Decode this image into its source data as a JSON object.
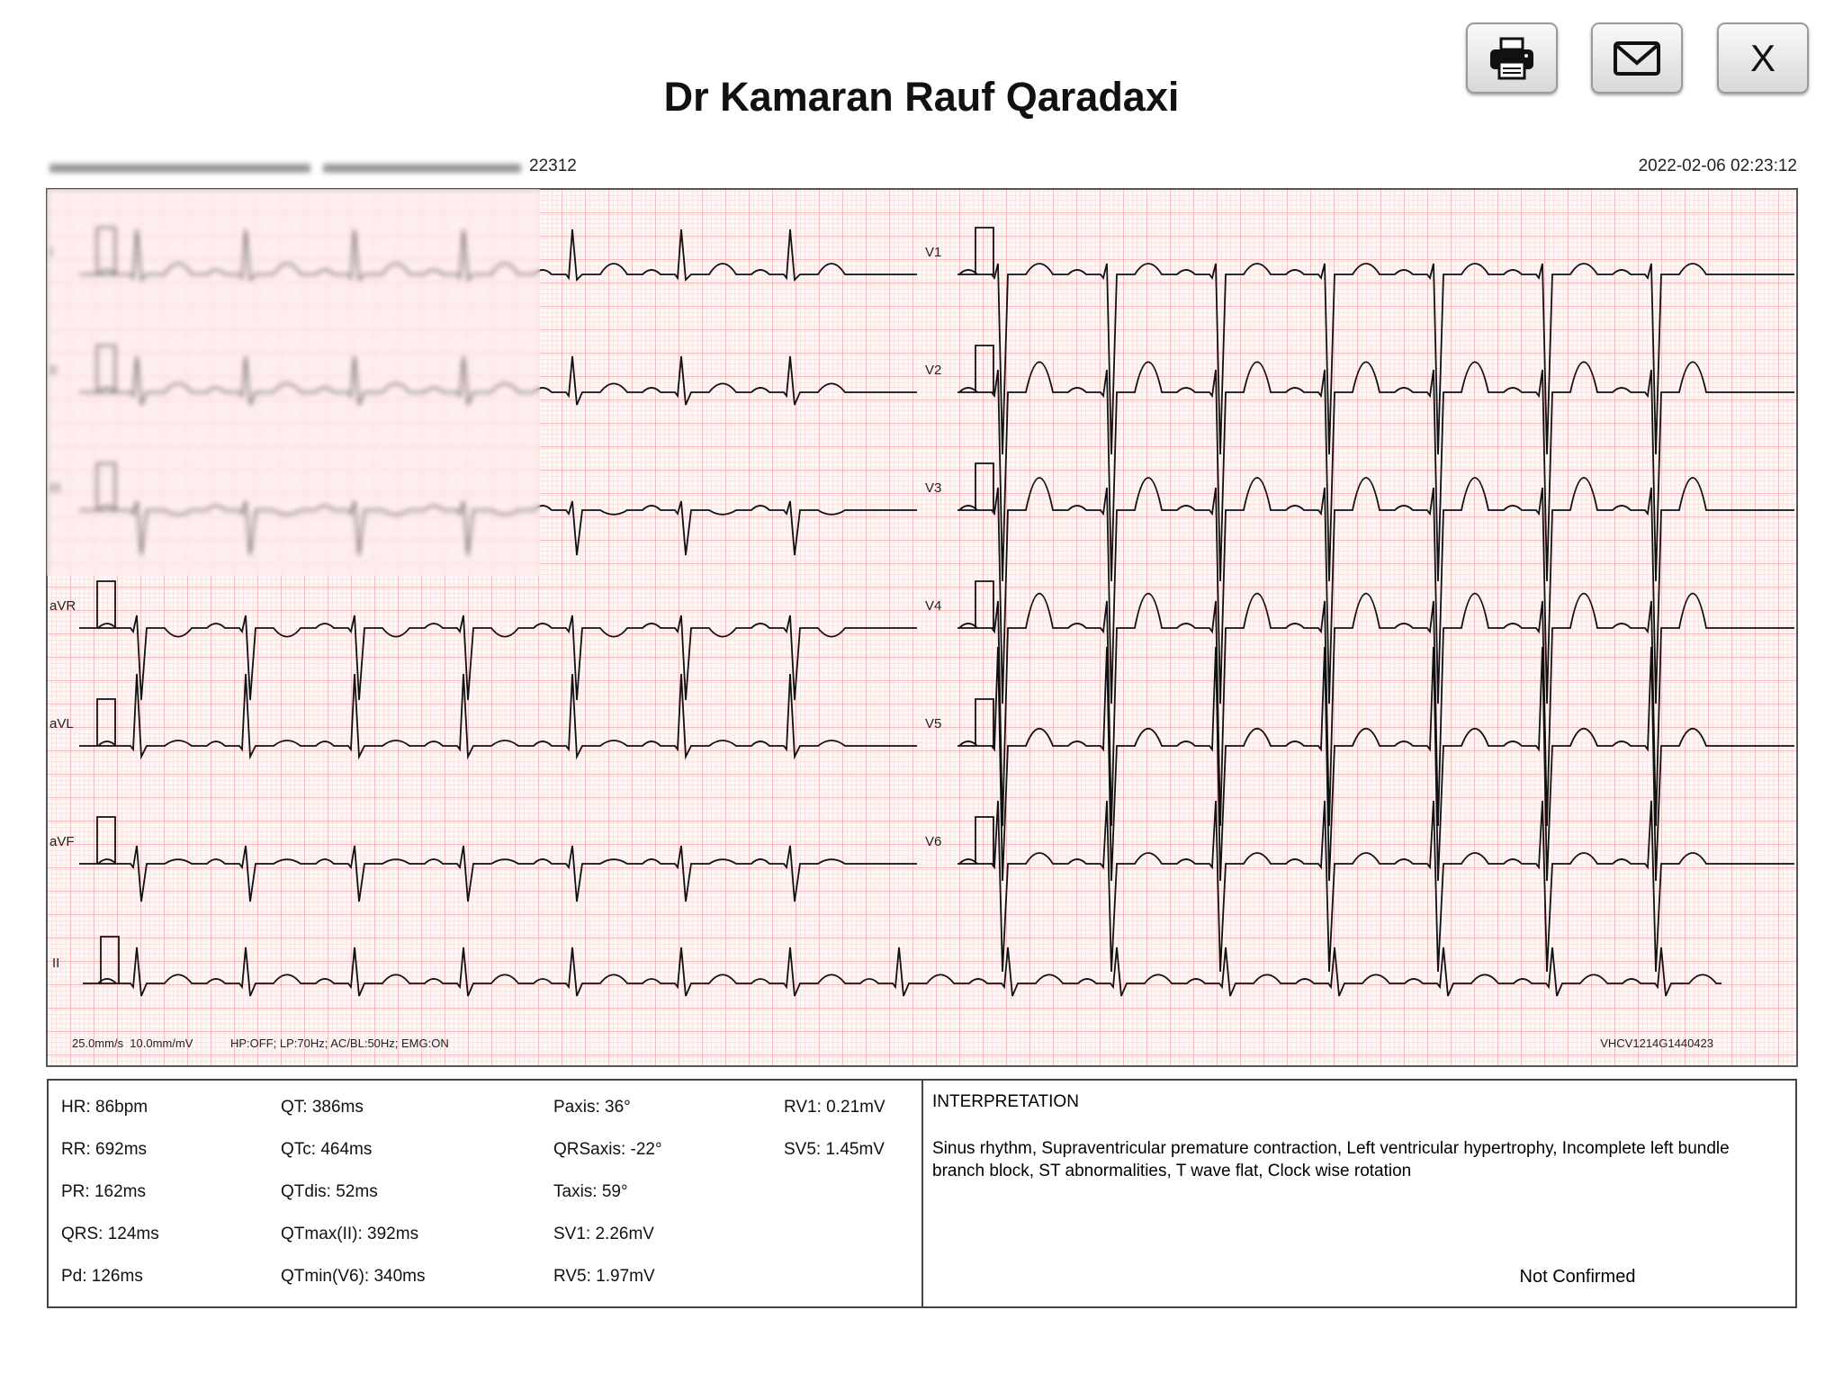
{
  "header": {
    "title": "Dr Kamaran Rauf Qaradaxi",
    "record_fragment": "22312",
    "datetime": "2022-02-06 02:23:12"
  },
  "buttons": {
    "close": "X"
  },
  "leads": {
    "left": [
      "I",
      "II",
      "III",
      "aVR",
      "aVL",
      "aVF"
    ],
    "right": [
      "V1",
      "V2",
      "V3",
      "V4",
      "V5",
      "V6"
    ],
    "rhythm": "II"
  },
  "footer": {
    "speed": "25.0mm/s  10.0mm/mV",
    "filters": "HP:OFF; LP:70Hz; AC/BL:50Hz; EMG:ON",
    "device": "VHCV1214G1440423"
  },
  "measurements": [
    [
      "HR: 86bpm",
      "RR: 692ms",
      "PR: 162ms",
      "QRS: 124ms",
      "Pd: 126ms"
    ],
    [
      "QT: 386ms",
      "QTc: 464ms",
      "QTdis: 52ms",
      "QTmax(II): 392ms",
      "QTmin(V6): 340ms"
    ],
    [
      "Paxis: 36°",
      "QRSaxis: -22°",
      "Taxis: 59°",
      "SV1: 2.26mV",
      "RV5: 1.97mV"
    ],
    [
      "RV1: 0.21mV",
      "SV5: 1.45mV"
    ]
  ],
  "interpretation": {
    "heading": "INTERPRETATION",
    "text": "Sinus rhythm, Supraventricular premature contraction, Left ventricular hypertrophy, Incomplete left bundle branch block, ST abnormalities, T wave flat, Clock wise rotation",
    "status": "Not Confirmed"
  }
}
